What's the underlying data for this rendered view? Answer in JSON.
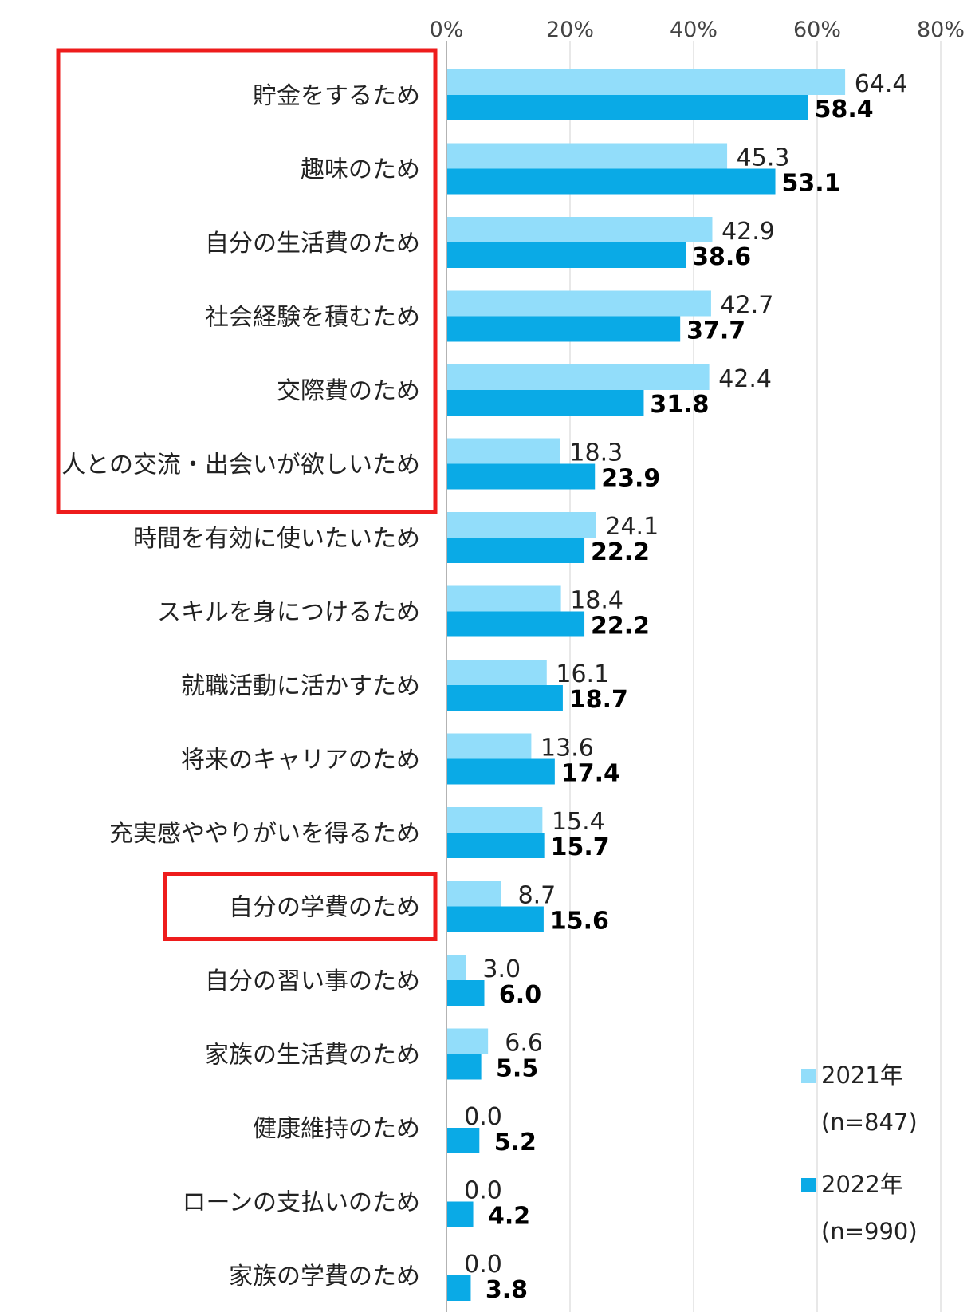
{
  "chart_data": {
    "type": "bar",
    "orientation": "horizontal",
    "categories": [
      "貯金をするため",
      "趣味のため",
      "自分の生活費のため",
      "社会経験を積むため",
      "交際費のため",
      "人との交流・出会いが欲しいため",
      "時間を有効に使いたいため",
      "スキルを身につけるため",
      "就職活動に活かすため",
      "将来のキャリアのため",
      "充実感ややりがいを得るため",
      "自分の学費のため",
      "自分の習い事のため",
      "家族の生活費のため",
      "健康維持のため",
      "ローンの支払いのため",
      "家族の学費のため"
    ],
    "series": [
      {
        "name": "2021年",
        "n_label": "(n=847)",
        "color": "#92DDFA",
        "values": [
          64.4,
          45.3,
          42.9,
          42.7,
          42.4,
          18.3,
          24.1,
          18.4,
          16.1,
          13.6,
          15.4,
          8.7,
          3.0,
          6.6,
          0.0,
          0.0,
          0.0
        ],
        "labels": [
          "64.4",
          "45.3",
          "42.9",
          "42.7",
          "42.4",
          "18.3",
          "24.1",
          "18.4",
          "16.1",
          "13.6",
          "15.4",
          "8.7",
          "3.0",
          "6.6",
          "0.0",
          "0.0",
          "0.0"
        ]
      },
      {
        "name": "2022年",
        "n_label": "(n=990)",
        "color": "#0AAAE6",
        "values": [
          58.4,
          53.1,
          38.6,
          37.7,
          31.8,
          23.9,
          22.2,
          22.2,
          18.7,
          17.4,
          15.7,
          15.6,
          6.0,
          5.5,
          5.2,
          4.2,
          3.8
        ],
        "labels": [
          "58.4",
          "53.1",
          "38.6",
          "37.7",
          "31.8",
          "23.9",
          "22.2",
          "22.2",
          "18.7",
          "17.4",
          "15.7",
          "15.6",
          "6.0",
          "5.5",
          "5.2",
          "4.2",
          "3.8"
        ]
      }
    ],
    "xlim": [
      0,
      80
    ],
    "xticks": [
      "0%",
      "20%",
      "40%",
      "60%",
      "80%"
    ],
    "grid": true,
    "legend_position": "bottom-right",
    "highlight_groups": [
      {
        "from": 0,
        "to": 5,
        "color": "#EE1C1C"
      },
      {
        "from": 11,
        "to": 11,
        "color": "#EE1C1C"
      }
    ]
  }
}
